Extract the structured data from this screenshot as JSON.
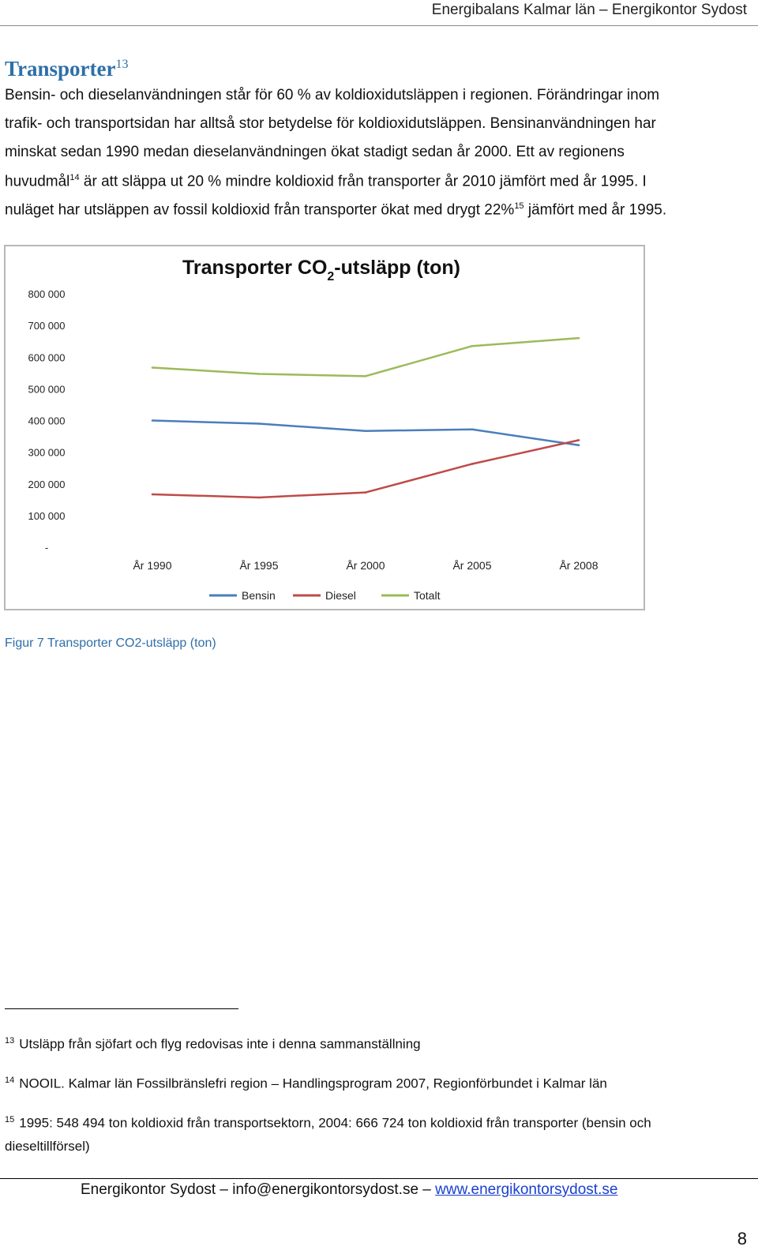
{
  "header": {
    "running_title": "Energibalans Kalmar län – Energikontor Sydost"
  },
  "section": {
    "title": "Transporter",
    "title_ref": "13"
  },
  "body": {
    "line1": "Bensin- och dieselanvändningen står för 60 % av koldioxidutsläppen i regionen. Förändringar inom",
    "line2": "trafik- och transportsidan har alltså stor betydelse för koldioxidutsläppen. Bensinanvändningen har",
    "line3": "minskat sedan 1990 medan dieselanvändningen ökat stadigt sedan år 2000. Ett av regionens",
    "line4a": "huvudmål",
    "line4_ref": "14",
    "line4b": " är att släppa ut 20 % mindre koldioxid från transporter år 2010 jämfört med år 1995. I",
    "line5a": "nuläget har utsläppen av fossil koldioxid från transporter ökat med drygt 22%",
    "line5_ref": "15",
    "line5b": " jämfört med år 1995."
  },
  "chart_data": {
    "type": "line",
    "title_main": "Transporter CO",
    "title_sub": "2",
    "title_rest": "-utsläpp (ton)",
    "categories": [
      "År 1990",
      "År 1995",
      "År 2000",
      "År 2005",
      "År 2008"
    ],
    "ylim": [
      0,
      800000
    ],
    "yticks": [
      {
        "value": 800000,
        "label": "800 000"
      },
      {
        "value": 700000,
        "label": "700 000"
      },
      {
        "value": 600000,
        "label": "600 000"
      },
      {
        "value": 500000,
        "label": "500 000"
      },
      {
        "value": 400000,
        "label": "400 000"
      },
      {
        "value": 300000,
        "label": "300 000"
      },
      {
        "value": 200000,
        "label": "200 000"
      },
      {
        "value": 100000,
        "label": "100 000"
      },
      {
        "value": 0,
        "label": "-"
      }
    ],
    "legend_position": "bottom",
    "grid": false,
    "series": [
      {
        "name": "Bensin",
        "color": "#4a7ebb",
        "values": [
          400000,
          390000,
          367000,
          372000,
          322000
        ]
      },
      {
        "name": "Diesel",
        "color": "#be4b48",
        "values": [
          167000,
          157000,
          173000,
          263000,
          338000
        ]
      },
      {
        "name": "Totalt",
        "color": "#9bbb59",
        "values": [
          567000,
          547000,
          540000,
          635000,
          660000
        ]
      }
    ]
  },
  "caption": {
    "text": "Figur 7 Transporter CO2-utsläpp (ton)"
  },
  "footnotes": [
    {
      "ref": "13",
      "text": "Utsläpp från sjöfart och flyg redovisas inte i denna sammanställning"
    },
    {
      "ref": "14",
      "text": "NOOIL. Kalmar län Fossilbränslefri region – Handlingsprogram 2007, Regionförbundet i Kalmar län"
    },
    {
      "ref": "15",
      "text": "1995: 548 494 ton koldioxid från transportsektorn, 2004: 666 724 ton koldioxid från transporter (bensin och",
      "text_cont": "dieseltillförsel)"
    }
  ],
  "footer": {
    "org": "Energikontor Sydost – info@energikontorsydost.se – ",
    "link": "www.energikontorsydost.se"
  },
  "page": {
    "number": "8"
  }
}
